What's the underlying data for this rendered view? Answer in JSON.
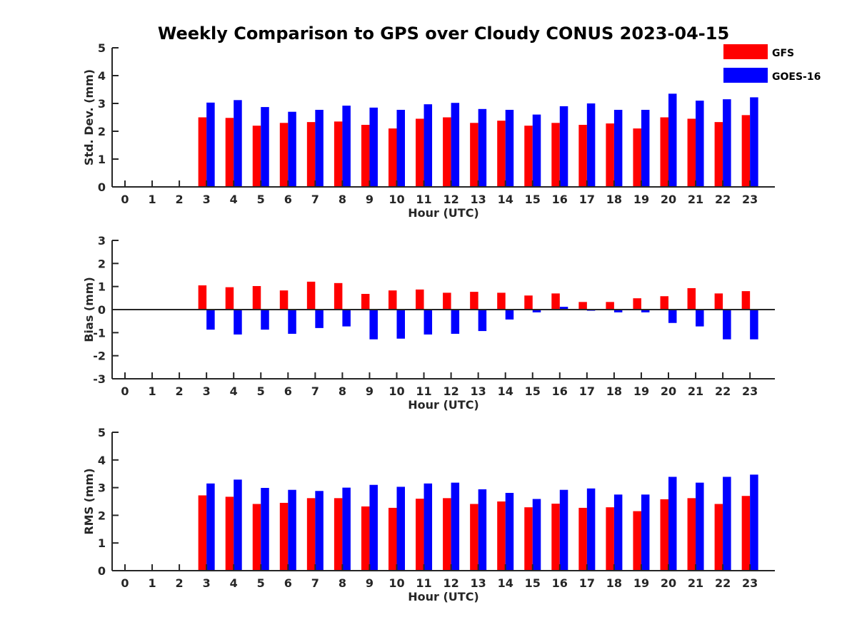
{
  "title": "Weekly Comparison to GPS over Cloudy CONUS 2023-04-15",
  "legend": {
    "placement": "top-right",
    "entries": [
      {
        "name": "GFS",
        "color": "#ff0000"
      },
      {
        "name": "GOES-16",
        "color": "#0000ff"
      }
    ]
  },
  "chart_data": [
    {
      "type": "bar",
      "xlabel": "Hour (UTC)",
      "ylabel": "Std. Dev. (mm)",
      "ylim": [
        0,
        5
      ],
      "yticks": [
        0,
        1,
        2,
        3,
        4,
        5
      ],
      "categories": [
        "0",
        "1",
        "2",
        "3",
        "4",
        "5",
        "6",
        "7",
        "8",
        "9",
        "10",
        "11",
        "12",
        "13",
        "14",
        "15",
        "16",
        "17",
        "18",
        "19",
        "20",
        "21",
        "22",
        "23"
      ],
      "series": [
        {
          "name": "GFS",
          "color": "#ff0000",
          "values": [
            null,
            null,
            null,
            2.5,
            2.48,
            2.2,
            2.3,
            2.33,
            2.35,
            2.23,
            2.1,
            2.45,
            2.5,
            2.3,
            2.38,
            2.2,
            2.3,
            2.23,
            2.28,
            2.1,
            2.5,
            2.45,
            2.33,
            2.58
          ]
        },
        {
          "name": "GOES-16",
          "color": "#0000ff",
          "values": [
            null,
            null,
            null,
            3.03,
            3.12,
            2.87,
            2.7,
            2.77,
            2.92,
            2.85,
            2.77,
            2.97,
            3.02,
            2.8,
            2.77,
            2.6,
            2.9,
            3.0,
            2.77,
            2.77,
            3.35,
            3.1,
            3.15,
            3.22
          ]
        }
      ]
    },
    {
      "type": "bar",
      "xlabel": "Hour (UTC)",
      "ylabel": "Bias (mm)",
      "ylim": [
        -3,
        3
      ],
      "yticks": [
        -3,
        -2,
        -1,
        0,
        1,
        2,
        3
      ],
      "zero_line": true,
      "categories": [
        "0",
        "1",
        "2",
        "3",
        "4",
        "5",
        "6",
        "7",
        "8",
        "9",
        "10",
        "11",
        "12",
        "13",
        "14",
        "15",
        "16",
        "17",
        "18",
        "19",
        "20",
        "21",
        "22",
        "23"
      ],
      "series": [
        {
          "name": "GFS",
          "color": "#ff0000",
          "values": [
            null,
            null,
            null,
            1.05,
            0.97,
            1.02,
            0.83,
            1.21,
            1.15,
            0.68,
            0.83,
            0.87,
            0.73,
            0.77,
            0.73,
            0.61,
            0.7,
            0.33,
            0.33,
            0.49,
            0.58,
            0.93,
            0.7,
            0.8
          ]
        },
        {
          "name": "GOES-16",
          "color": "#0000ff",
          "values": [
            null,
            null,
            null,
            -0.87,
            -1.08,
            -0.87,
            -1.05,
            -0.8,
            -0.73,
            -1.29,
            -1.26,
            -1.08,
            -1.05,
            -0.93,
            -0.43,
            -0.12,
            0.12,
            -0.05,
            -0.12,
            -0.12,
            -0.58,
            -0.73,
            -1.29,
            -1.29
          ]
        }
      ]
    },
    {
      "type": "bar",
      "xlabel": "Hour (UTC)",
      "ylabel": "RMS (mm)",
      "ylim": [
        0,
        5
      ],
      "yticks": [
        0,
        1,
        2,
        3,
        4,
        5
      ],
      "categories": [
        "0",
        "1",
        "2",
        "3",
        "4",
        "5",
        "6",
        "7",
        "8",
        "9",
        "10",
        "11",
        "12",
        "13",
        "14",
        "15",
        "16",
        "17",
        "18",
        "19",
        "20",
        "21",
        "22",
        "23"
      ],
      "series": [
        {
          "name": "GFS",
          "color": "#ff0000",
          "values": [
            null,
            null,
            null,
            2.72,
            2.67,
            2.41,
            2.45,
            2.62,
            2.62,
            2.32,
            2.27,
            2.6,
            2.62,
            2.41,
            2.5,
            2.29,
            2.42,
            2.27,
            2.29,
            2.15,
            2.58,
            2.62,
            2.41,
            2.7
          ]
        },
        {
          "name": "GOES-16",
          "color": "#0000ff",
          "values": [
            null,
            null,
            null,
            3.15,
            3.29,
            2.99,
            2.92,
            2.88,
            3.0,
            3.1,
            3.03,
            3.15,
            3.18,
            2.94,
            2.81,
            2.59,
            2.92,
            2.97,
            2.75,
            2.75,
            3.39,
            3.18,
            3.39,
            3.47
          ]
        }
      ]
    }
  ]
}
